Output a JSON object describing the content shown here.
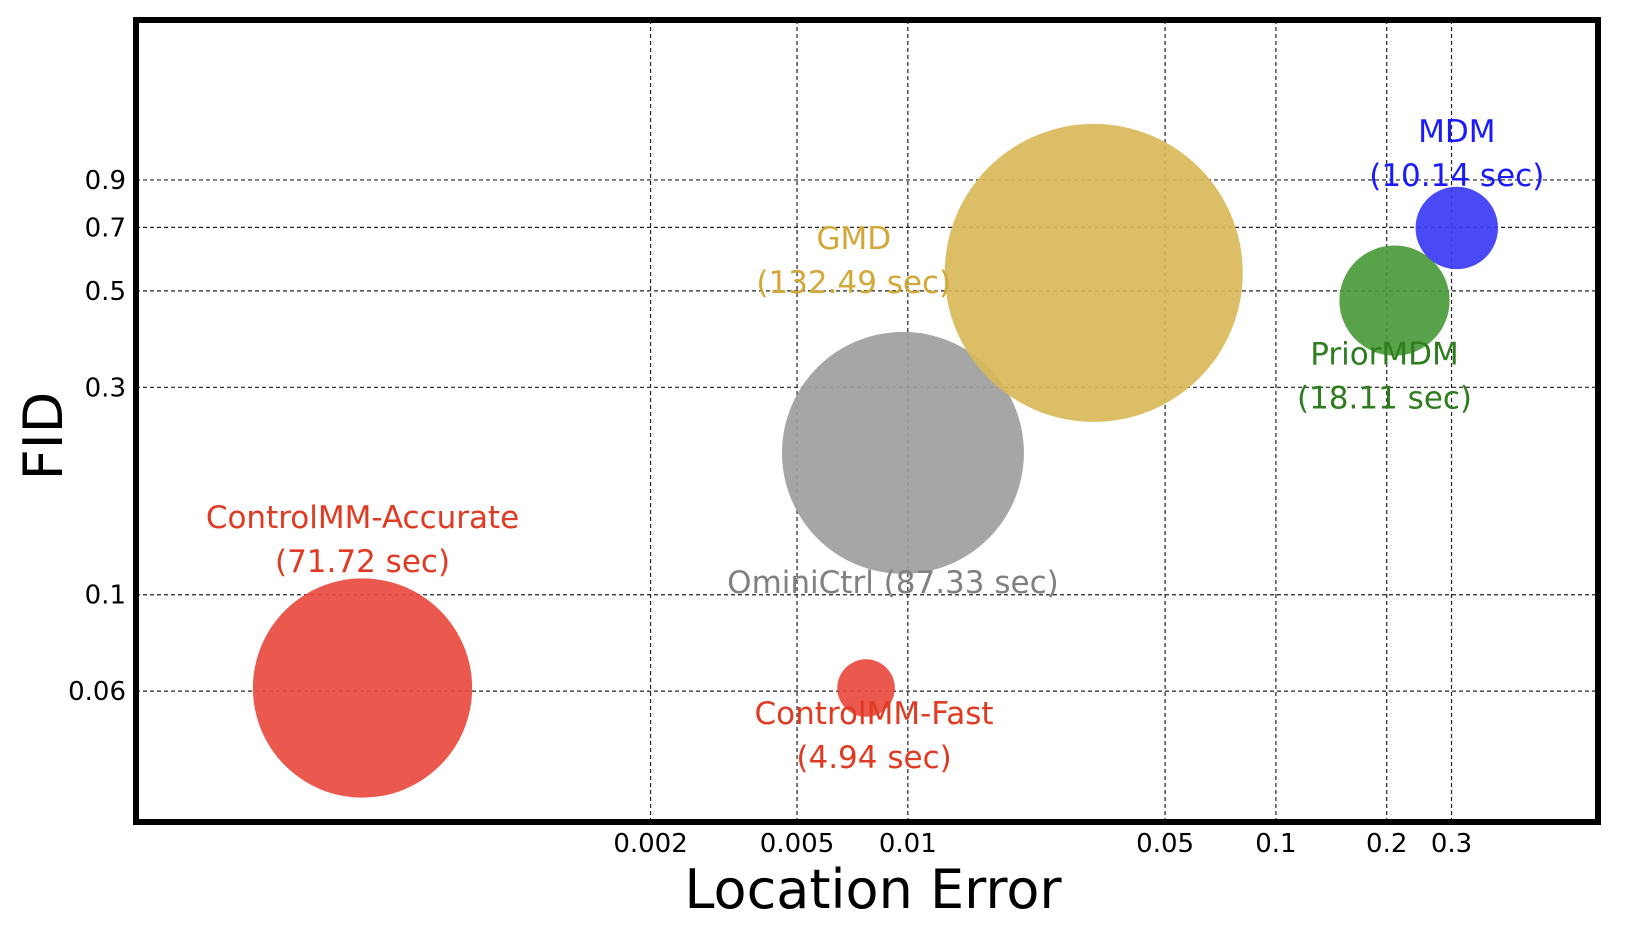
{
  "chart_data": {
    "type": "scatter",
    "title": "",
    "xlabel": "Location Error",
    "ylabel": "FID",
    "x_scale": "log",
    "y_scale": "log",
    "xlim": [
      8e-05,
      0.75
    ],
    "ylim": [
      0.03,
      2.1
    ],
    "grid": true,
    "x_ticks": [
      0.002,
      0.005,
      0.01,
      0.05,
      0.1,
      0.2,
      0.3
    ],
    "x_tick_labels": [
      "0.002",
      "0.005",
      "0.01",
      "0.05",
      "0.1",
      "0.2",
      "0.3"
    ],
    "y_ticks": [
      0.06,
      0.1,
      0.3,
      0.5,
      0.7,
      0.9
    ],
    "y_tick_labels": [
      "0.06",
      "0.1",
      "0.3",
      "0.5",
      "0.7",
      "0.9"
    ],
    "series": [
      {
        "name": "ControlMM-Accurate",
        "label": [
          "ControlMM-Accurate",
          "(71.72 sec)"
        ],
        "x": 0.00033,
        "y": 0.061,
        "time_sec": 71.72,
        "color": "#e84a3f",
        "label_color": "#e03a22"
      },
      {
        "name": "ControlMM-Fast",
        "label": [
          "ControlMM-Fast",
          "(4.94 sec)"
        ],
        "x": 0.0077,
        "y": 0.061,
        "time_sec": 4.94,
        "color": "#e84a3f",
        "label_color": "#e03a22"
      },
      {
        "name": "OminiCtrl",
        "label": [
          "OminiCtrl (87.33 sec)"
        ],
        "x": 0.0097,
        "y": 0.212,
        "time_sec": 87.33,
        "color": "#9e9e9e",
        "label_color": "#808080"
      },
      {
        "name": "GMD",
        "label": [
          "GMD",
          "(132.49 sec)"
        ],
        "x": 0.032,
        "y": 0.55,
        "time_sec": 132.49,
        "color": "#d9b95a",
        "label_color": "#d4a838"
      },
      {
        "name": "PriorMDM",
        "label": [
          "PriorMDM",
          "(18.11 sec)"
        ],
        "x": 0.21,
        "y": 0.475,
        "time_sec": 18.11,
        "color": "#4a9a3a",
        "label_color": "#2e7d1e"
      },
      {
        "name": "MDM",
        "label": [
          "MDM",
          "(10.14 sec)"
        ],
        "x": 0.31,
        "y": 0.698,
        "time_sec": 10.14,
        "color": "#3a3af5",
        "label_color": "#1a1aff"
      }
    ]
  }
}
